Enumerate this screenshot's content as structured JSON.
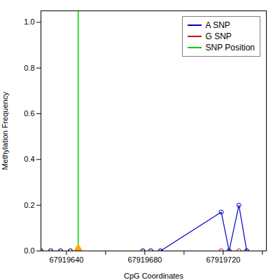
{
  "chart_data": {
    "type": "line",
    "xlabel": "CpG Coordinates",
    "ylabel": "Methylation Frequency",
    "xlim": [
      67919627,
      67919742
    ],
    "ylim": [
      0.0,
      1.05
    ],
    "xticks": [
      67919640,
      {
        "value": 67919660,
        "label": ""
      },
      67919680,
      {
        "value": 67919700,
        "label": ""
      },
      67919720,
      {
        "value": 67919740,
        "label": ""
      }
    ],
    "yticks": [
      {
        "value": 0.0,
        "label": "0.0"
      },
      0.2,
      0.4,
      0.6,
      0.8,
      {
        "value": 1.0,
        "label": "1.0"
      }
    ],
    "grid": false,
    "legend": "upper right",
    "series": [
      {
        "name": "A SNP",
        "color": "#0000CC",
        "marker": "circle",
        "x": [
          67919627,
          67919632,
          67919637,
          67919642,
          67919679,
          67919683,
          67919688,
          67919719,
          67919723,
          67919728,
          67919732
        ],
        "values": [
          0.0,
          0.0,
          0.0,
          0.0,
          0.0,
          0.0,
          0.0,
          0.17,
          0.0,
          0.2,
          0.0
        ]
      },
      {
        "name": "G SNP",
        "color": "#CC0000",
        "marker": "circle",
        "x": [
          67919627,
          67919632,
          67919637,
          67919642,
          67919679,
          67919683,
          67919688,
          67919719,
          67919723,
          67919728,
          67919732
        ],
        "values": [
          0.0,
          0.0,
          0.0,
          0.0,
          0.0,
          0.0,
          0.0,
          0.0,
          0.0,
          0.0,
          0.0
        ]
      }
    ],
    "vlines": [
      {
        "name": "SNP Position",
        "x": 67919646,
        "color": "#00CC00"
      }
    ],
    "points": [
      {
        "x": 67919646,
        "y": 0.0,
        "color": "#FFA500",
        "marker": "triangle"
      }
    ]
  }
}
